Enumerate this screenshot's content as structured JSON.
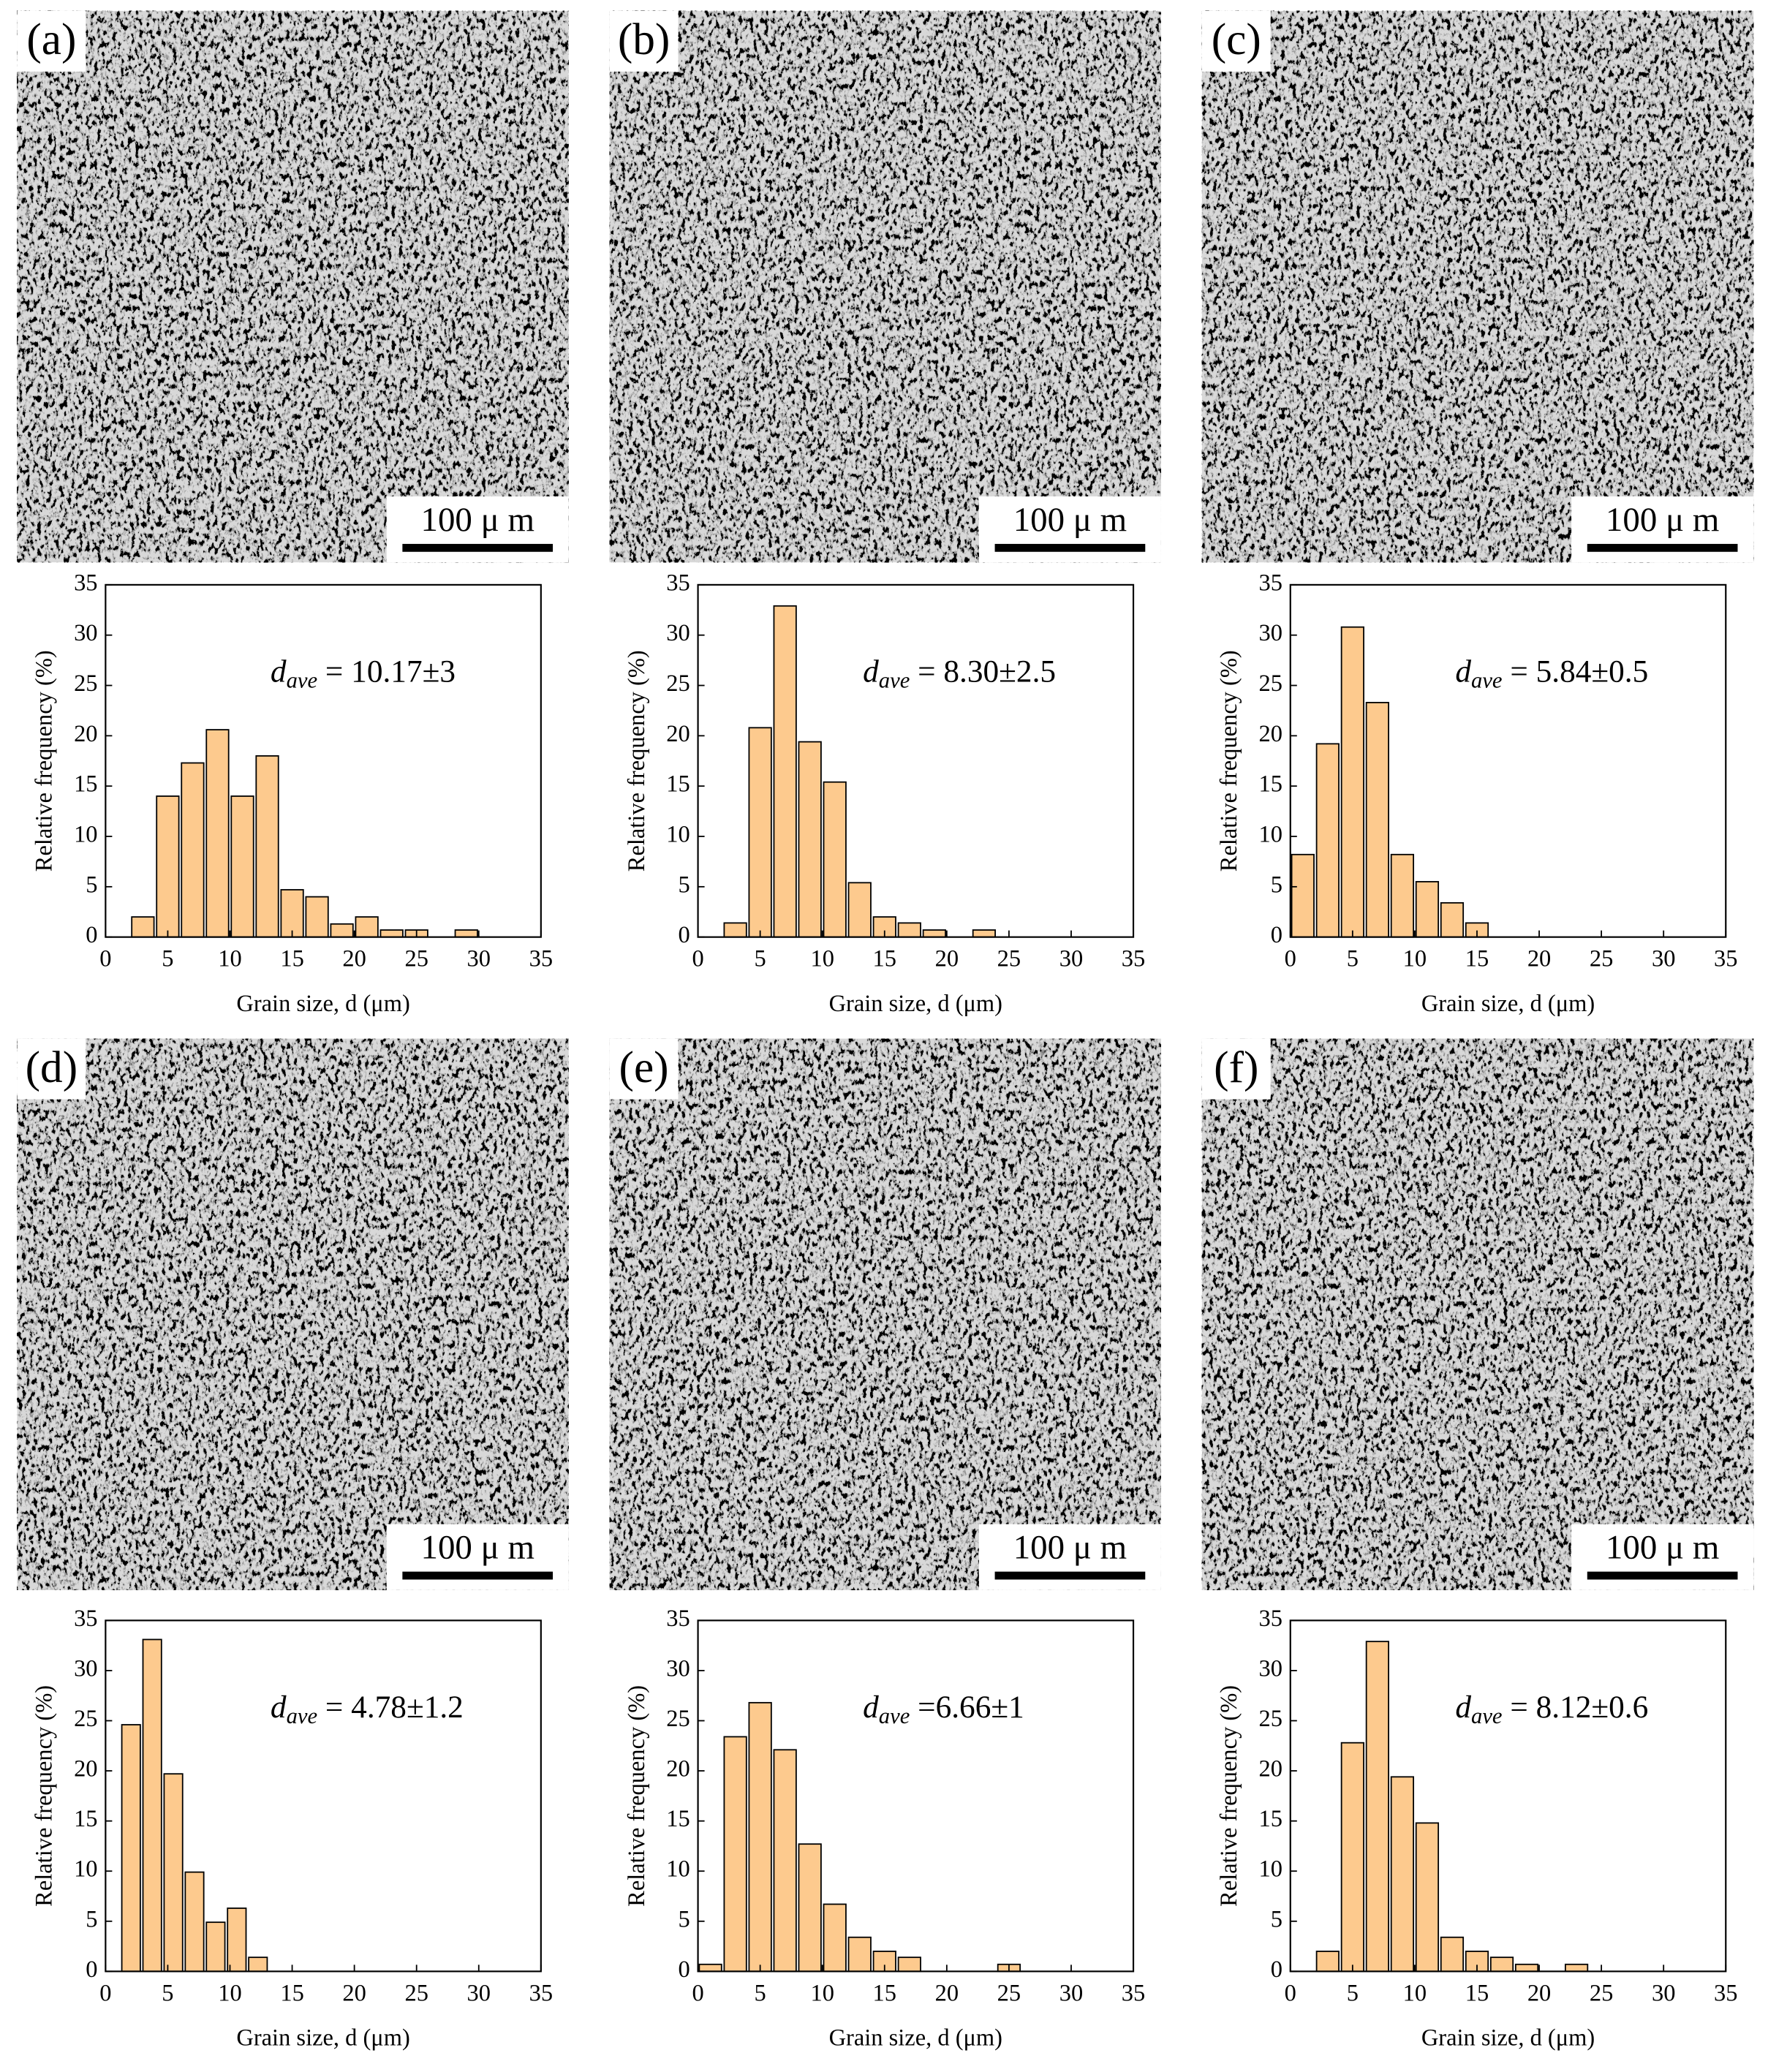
{
  "chart_data": [
    {
      "type": "histogram",
      "panel_label": "(a)",
      "scale_bar_label": "100 μ m",
      "ylabel": "Relative frequency (%)",
      "xlabel": "Grain size, d (μm)",
      "annotation": {
        "symbol": "d",
        "subscript": "ave",
        "text": " = 10.17±3"
      },
      "bins": [
        2,
        4,
        6,
        8,
        10,
        12,
        14,
        16,
        18,
        20,
        22,
        24,
        26,
        28,
        30
      ],
      "values": [
        2,
        14,
        17.3,
        20.6,
        14,
        18,
        4.7,
        4,
        1.3,
        2,
        0.7,
        0.7,
        0,
        0.7
      ],
      "color": "#fdca8e",
      "xlim": [
        0,
        35
      ],
      "ylim": [
        0,
        35
      ],
      "xticks": [
        0,
        5,
        10,
        15,
        20,
        25,
        30,
        35
      ],
      "yticks": [
        0,
        5,
        10,
        15,
        20,
        25,
        30,
        35
      ]
    },
    {
      "type": "histogram",
      "panel_label": "(b)",
      "scale_bar_label": "100 μ m",
      "ylabel": "Relative frequency (%)",
      "xlabel": "Grain size, d (μm)",
      "annotation": {
        "symbol": "d",
        "subscript": "ave",
        "text": " = 8.30±2.5"
      },
      "bins": [
        2,
        4,
        6,
        8,
        10,
        12,
        14,
        16,
        18,
        20,
        22,
        24
      ],
      "values": [
        1.4,
        20.8,
        32.9,
        19.4,
        15.4,
        5.4,
        2,
        1.4,
        0.7,
        0,
        0.7
      ],
      "color": "#fdca8e",
      "xlim": [
        0,
        35
      ],
      "ylim": [
        0,
        35
      ],
      "xticks": [
        0,
        5,
        10,
        15,
        20,
        25,
        30,
        35
      ],
      "yticks": [
        0,
        5,
        10,
        15,
        20,
        25,
        30,
        35
      ]
    },
    {
      "type": "histogram",
      "panel_label": "(c)",
      "scale_bar_label": "100 μ m",
      "ylabel": "Relative frequency (%)",
      "xlabel": "Grain size, d (μm)",
      "annotation": {
        "symbol": "d",
        "subscript": "ave",
        "text": " = 5.84±0.5"
      },
      "bins": [
        0,
        2,
        4,
        6,
        8,
        10,
        12,
        14,
        16
      ],
      "values": [
        8.2,
        19.2,
        30.8,
        23.3,
        8.2,
        5.5,
        3.4,
        1.4
      ],
      "color": "#fdca8e",
      "xlim": [
        0,
        35
      ],
      "ylim": [
        0,
        35
      ],
      "xticks": [
        0,
        5,
        10,
        15,
        20,
        25,
        30,
        35
      ],
      "yticks": [
        0,
        5,
        10,
        15,
        20,
        25,
        30,
        35
      ]
    },
    {
      "type": "histogram",
      "panel_label": "(d)",
      "scale_bar_label": "100 μ m",
      "ylabel": "Relative frequency (%)",
      "xlabel": "Grain size, d (μm)",
      "annotation": {
        "symbol": "d",
        "subscript": "ave",
        "text": " = 4.78±1.2"
      },
      "bins": [
        1.2,
        2.9,
        4.6,
        6.3,
        8.0,
        9.7,
        11.4,
        13.1
      ],
      "values": [
        24.6,
        33.1,
        19.7,
        9.9,
        4.9,
        6.3,
        1.4
      ],
      "color": "#fdca8e",
      "xlim": [
        0,
        35
      ],
      "ylim": [
        0,
        35
      ],
      "xticks": [
        0,
        5,
        10,
        15,
        20,
        25,
        30,
        35
      ],
      "yticks": [
        0,
        5,
        10,
        15,
        20,
        25,
        30,
        35
      ]
    },
    {
      "type": "histogram",
      "panel_label": "(e)",
      "scale_bar_label": "100 μ m",
      "ylabel": "Relative frequency (%)",
      "xlabel": "Grain size, d (μm)",
      "annotation": {
        "symbol": "d",
        "subscript": "ave",
        "text": " =6.66±1"
      },
      "bins": [
        0,
        2,
        4,
        6,
        8,
        10,
        12,
        14,
        16,
        18,
        20,
        22,
        24,
        26
      ],
      "values": [
        0.7,
        23.4,
        26.8,
        22.1,
        12.7,
        6.7,
        3.4,
        2,
        1.4,
        0,
        0,
        0,
        0.7
      ],
      "color": "#fdca8e",
      "xlim": [
        0,
        35
      ],
      "ylim": [
        0,
        35
      ],
      "xticks": [
        0,
        5,
        10,
        15,
        20,
        25,
        30,
        35
      ],
      "yticks": [
        0,
        5,
        10,
        15,
        20,
        25,
        30,
        35
      ]
    },
    {
      "type": "histogram",
      "panel_label": "(f)",
      "scale_bar_label": "100 μ m",
      "ylabel": "Relative frequency (%)",
      "xlabel": "Grain size, d (μm)",
      "annotation": {
        "symbol": "d",
        "subscript": "ave",
        "text": " = 8.12±0.6"
      },
      "bins": [
        2,
        4,
        6,
        8,
        10,
        12,
        14,
        16,
        18,
        20,
        22,
        24
      ],
      "values": [
        2,
        22.8,
        32.9,
        19.4,
        14.8,
        3.4,
        2,
        1.4,
        0.7,
        0,
        0.7
      ],
      "color": "#fdca8e",
      "xlim": [
        0,
        35
      ],
      "ylim": [
        0,
        35
      ],
      "xticks": [
        0,
        5,
        10,
        15,
        20,
        25,
        30,
        35
      ],
      "yticks": [
        0,
        5,
        10,
        15,
        20,
        25,
        30,
        35
      ]
    }
  ]
}
